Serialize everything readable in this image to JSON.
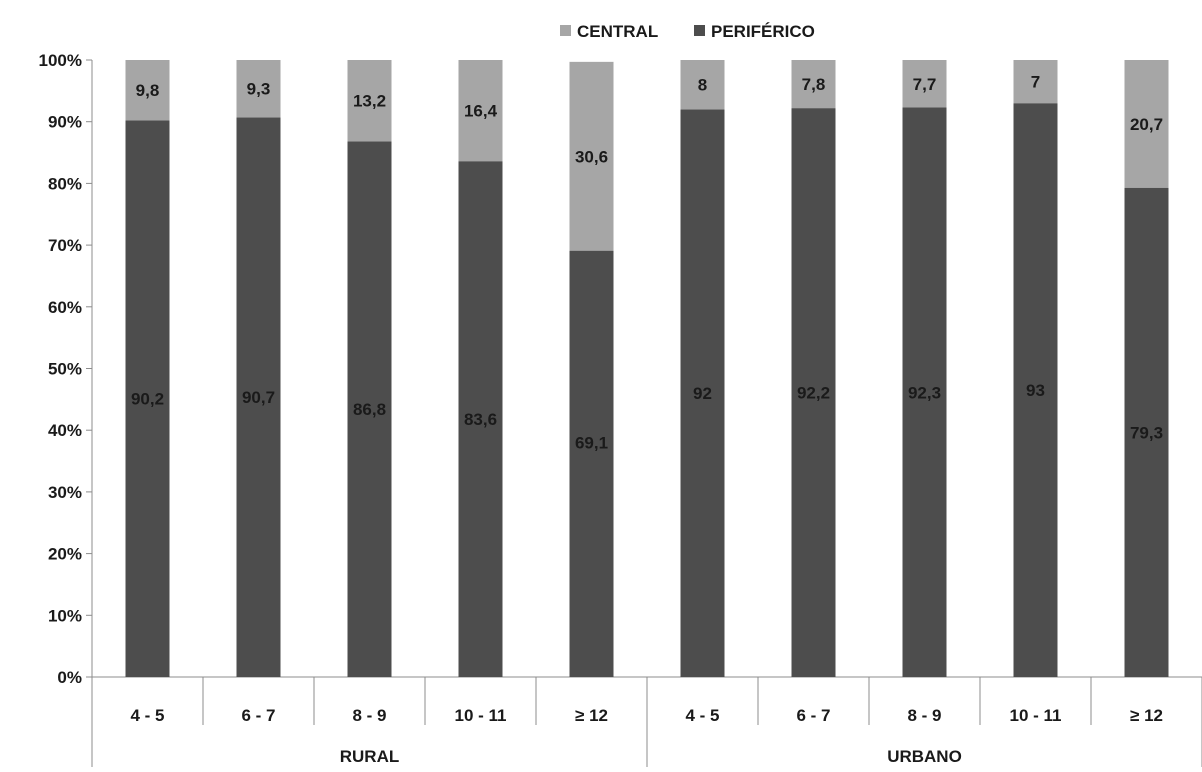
{
  "chart_data": {
    "type": "bar",
    "stacked": true,
    "percent_stacked": true,
    "legend": {
      "placement": "top-center",
      "entries": [
        {
          "name": "CENTRAL",
          "color": "#a6a6a6"
        },
        {
          "name": "PERIFÉRICO",
          "color": "#4d4d4d"
        }
      ]
    },
    "groups": [
      {
        "label": "RURAL",
        "categories": [
          "4 - 5",
          "6 - 7",
          "8 - 9",
          "10 - 11",
          "≥ 12"
        ]
      },
      {
        "label": "URBANO",
        "categories": [
          "4 - 5",
          "6 - 7",
          "8 - 9",
          "10 - 11",
          "≥ 12"
        ]
      }
    ],
    "categories": [
      "4 - 5",
      "6 - 7",
      "8 - 9",
      "10 - 11",
      "≥ 12",
      "4 - 5",
      "6 - 7",
      "8 - 9",
      "10 - 11",
      "≥ 12"
    ],
    "series": [
      {
        "name": "PERIFÉRICO",
        "color": "#4d4d4d",
        "values": [
          90.2,
          90.7,
          86.8,
          83.6,
          69.1,
          92,
          92.2,
          92.3,
          93,
          79.3
        ],
        "labels": [
          "90,2",
          "90,7",
          "86,8",
          "83,6",
          "69,1",
          "92",
          "92,2",
          "92,3",
          "93",
          "79,3"
        ]
      },
      {
        "name": "CENTRAL",
        "color": "#a6a6a6",
        "values": [
          9.8,
          9.3,
          13.2,
          16.4,
          30.6,
          8,
          7.8,
          7.7,
          7,
          20.7
        ],
        "labels": [
          "9,8",
          "9,3",
          "13,2",
          "16,4",
          "30,6",
          "8",
          "7,8",
          "7,7",
          "7",
          "20,7"
        ]
      }
    ],
    "y_ticks": [
      "0%",
      "10%",
      "20%",
      "30%",
      "40%",
      "50%",
      "60%",
      "70%",
      "80%",
      "90%",
      "100%"
    ],
    "ylim": [
      0,
      100
    ],
    "grid": false
  }
}
